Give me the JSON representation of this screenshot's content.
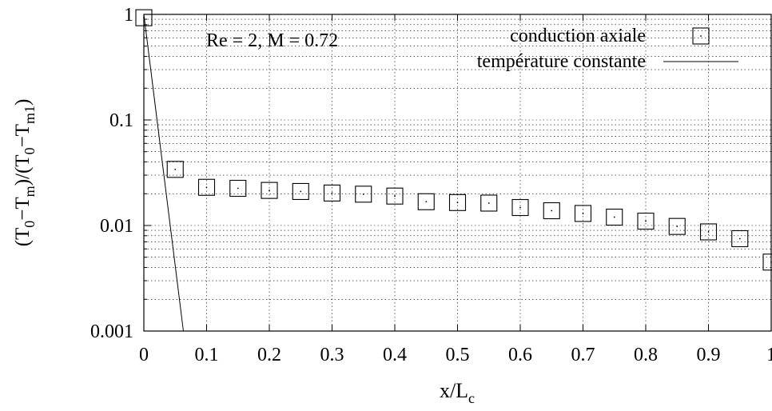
{
  "chart_data": {
    "type": "scatter",
    "xlabel": {
      "base": "x/L",
      "sub": "c"
    },
    "ylabel": {
      "parts": [
        {
          "t": "(T"
        },
        {
          "t": "0",
          "sub": true
        },
        {
          "t": "−T"
        },
        {
          "t": "m",
          "sub": true
        },
        {
          "t": ")/(T"
        },
        {
          "t": "0",
          "sub": true
        },
        {
          "t": "−T"
        },
        {
          "t": "m1",
          "sub": true
        },
        {
          "t": ")"
        }
      ]
    },
    "annotation": "Re = 2, M = 0.72",
    "xlim": [
      0,
      1
    ],
    "ylim": [
      0.001,
      1
    ],
    "yscale": "log",
    "grid": true,
    "legend_position": "top-right",
    "x_ticks": [
      "0",
      "0.1",
      "0.2",
      "0.3",
      "0.4",
      "0.5",
      "0.6",
      "0.7",
      "0.8",
      "0.9",
      "1"
    ],
    "y_ticks": [
      "0.001",
      "0.01",
      "0.1",
      "1"
    ],
    "series": [
      {
        "name": "conduction axiale",
        "style": "markers",
        "points": [
          [
            0.0,
            0.93
          ],
          [
            0.05,
            0.034
          ],
          [
            0.1,
            0.023
          ],
          [
            0.15,
            0.0225
          ],
          [
            0.2,
            0.0215
          ],
          [
            0.25,
            0.021
          ],
          [
            0.3,
            0.0203
          ],
          [
            0.35,
            0.0198
          ],
          [
            0.4,
            0.019
          ],
          [
            0.45,
            0.0168
          ],
          [
            0.5,
            0.0165
          ],
          [
            0.55,
            0.0163
          ],
          [
            0.6,
            0.0148
          ],
          [
            0.65,
            0.0138
          ],
          [
            0.7,
            0.013
          ],
          [
            0.75,
            0.012
          ],
          [
            0.8,
            0.011
          ],
          [
            0.85,
            0.0098
          ],
          [
            0.9,
            0.0087
          ],
          [
            0.95,
            0.0075
          ],
          [
            1.0,
            0.0045
          ]
        ]
      },
      {
        "name": "température constante",
        "style": "line",
        "points": [
          [
            0.0,
            1.0
          ],
          [
            0.063,
            0.001
          ]
        ]
      }
    ]
  }
}
